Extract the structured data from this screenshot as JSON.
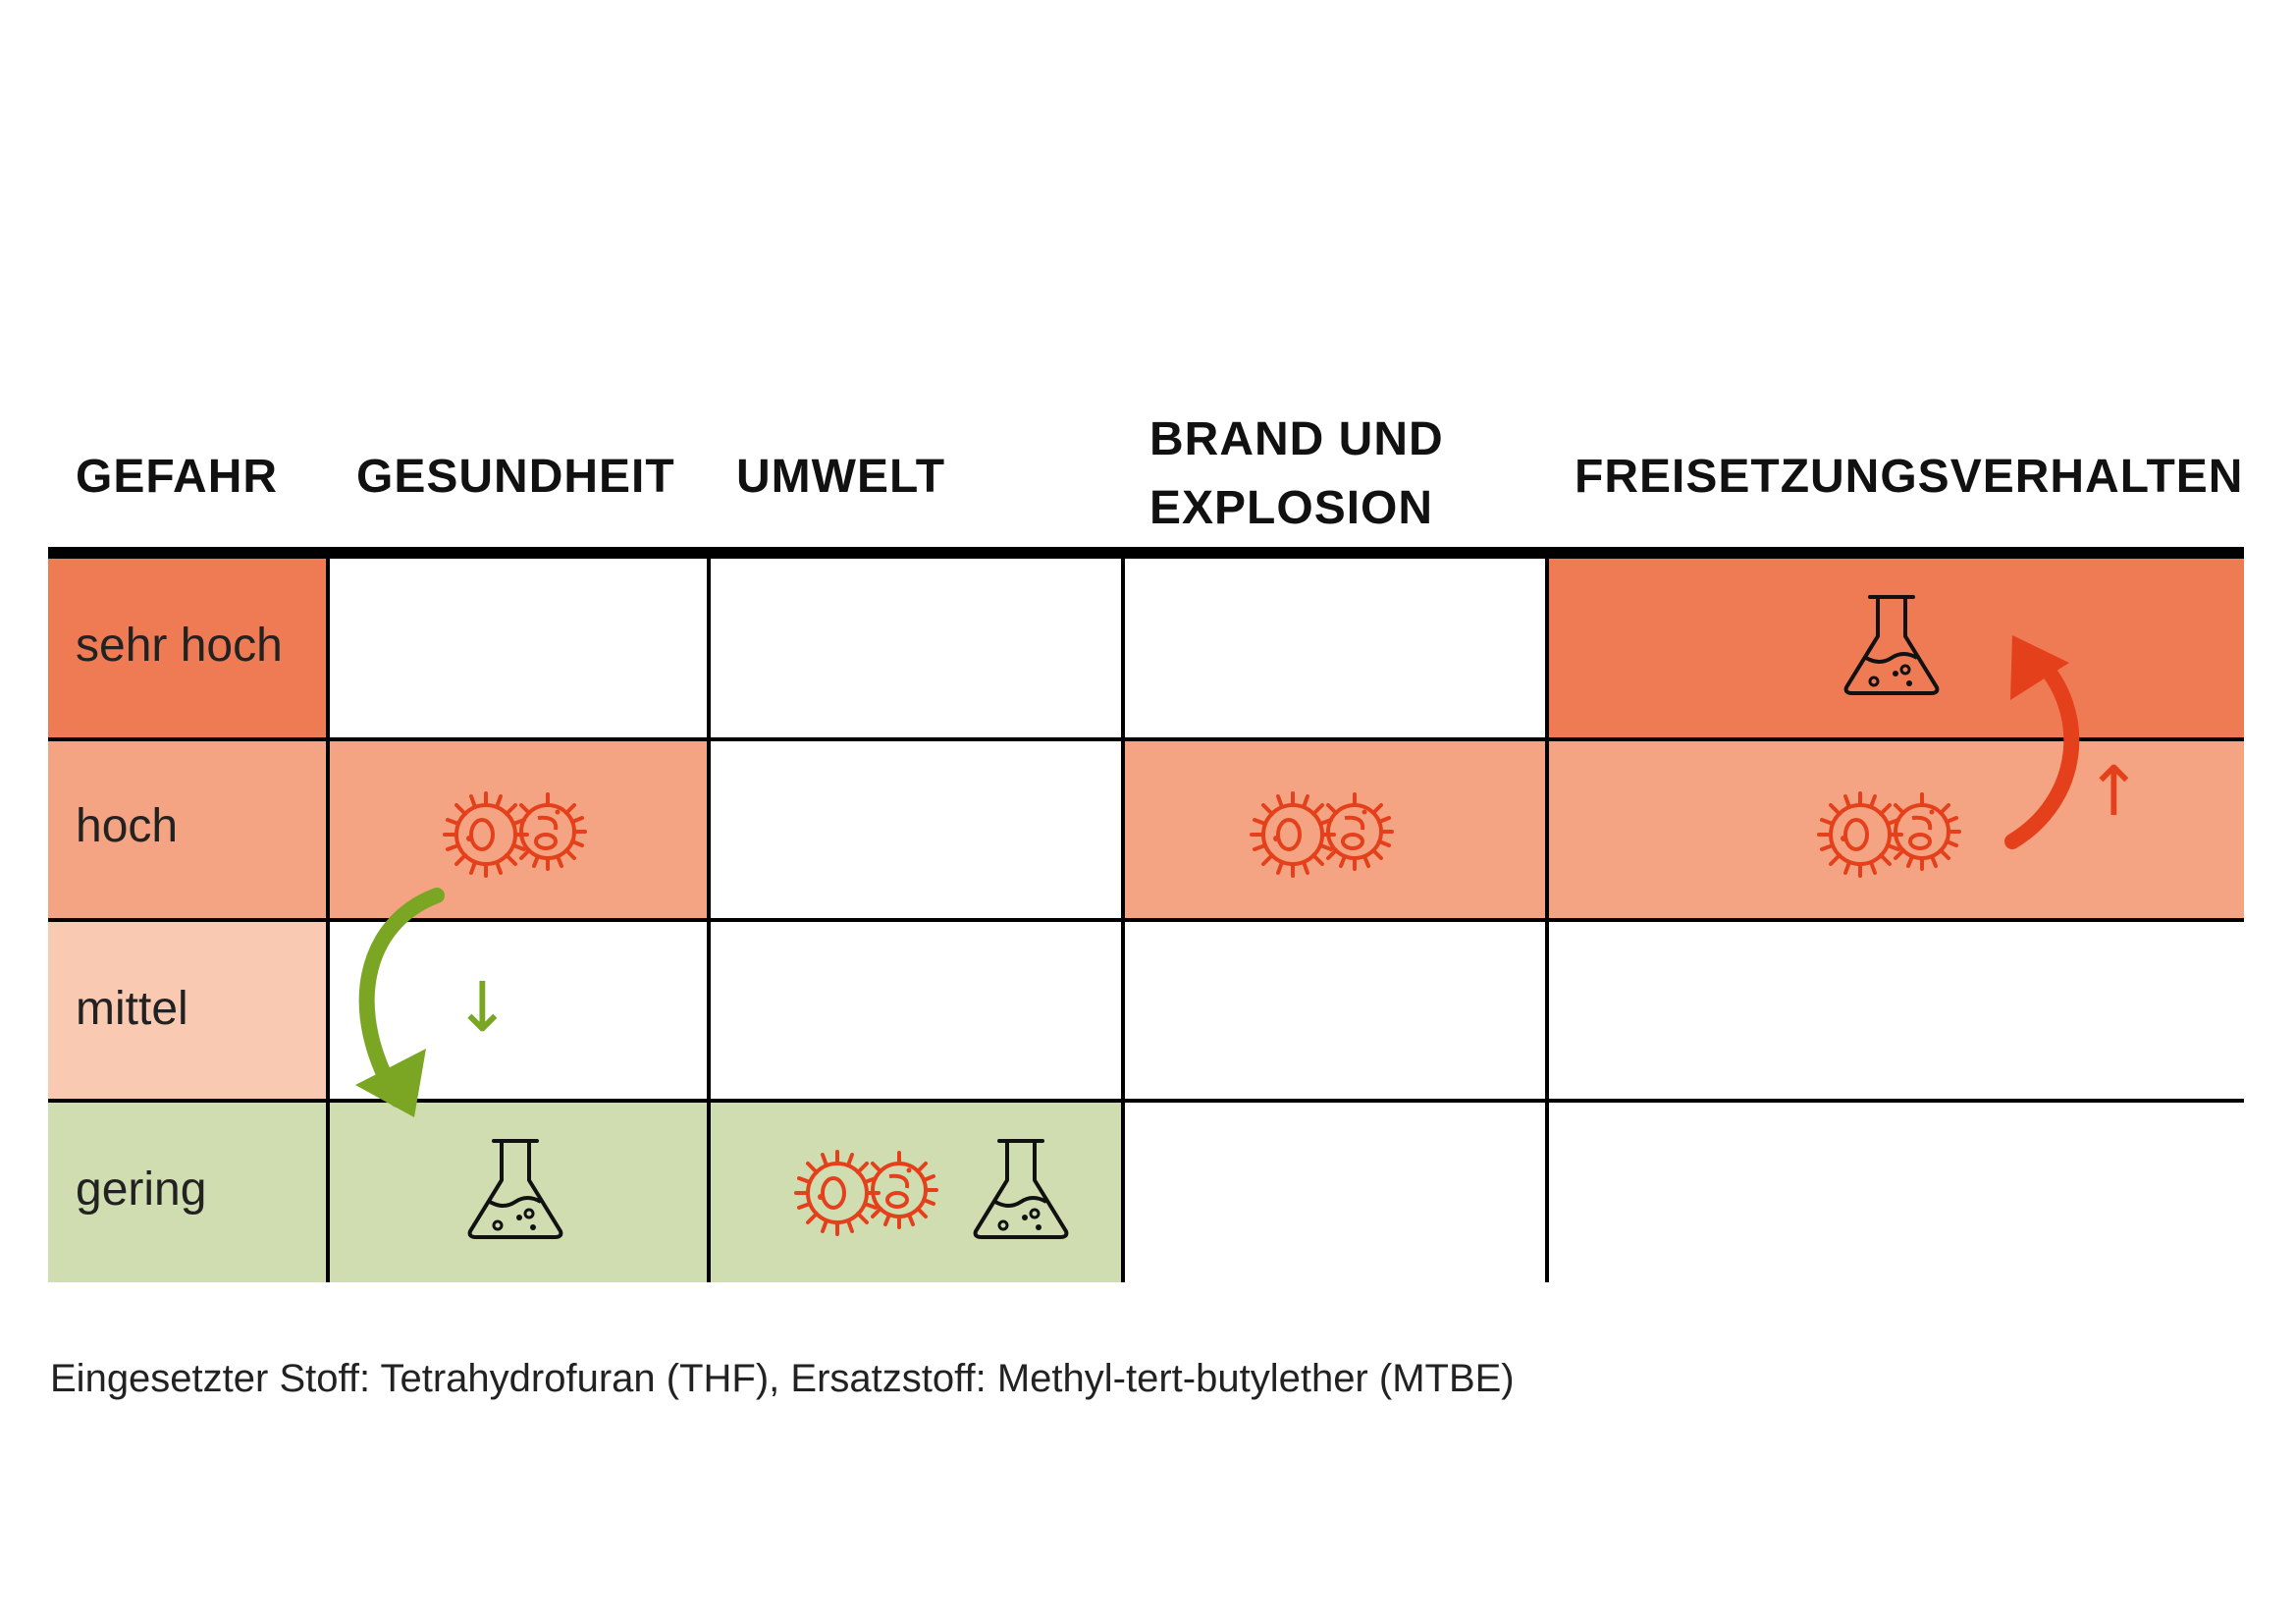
{
  "header": {
    "gefahr": "GEFAHR",
    "gesundheit": "GESUNDHEIT",
    "umwelt": "UMWELT",
    "brand_line1": "BRAND UND",
    "brand_line2": "EXPLOSION",
    "freisetzung": "FREISETZUNGSVERHALTEN"
  },
  "rows": [
    {
      "label": "sehr hoch",
      "color": "#ee7b54"
    },
    {
      "label": "hoch",
      "color": "#f4a482"
    },
    {
      "label": "mittel",
      "color": "#f9c9b2"
    },
    {
      "label": "gering",
      "color": "#d0ddb0"
    }
  ],
  "colors": {
    "bacteria": "#e4401b",
    "flask": "#111111",
    "down_arrow": "#7aa624",
    "up_arrow": "#e4401b"
  },
  "icons": {
    "bacteria": "bacteria-icon",
    "flask": "flask-icon"
  },
  "arrows": {
    "down_glyph": "↓",
    "up_glyph": "↑"
  },
  "caption": "Eingesetzter Stoff: Tetrahydrofuran (THF), Ersatzstoff: Methyl-tert-butylether (MTBE)"
}
